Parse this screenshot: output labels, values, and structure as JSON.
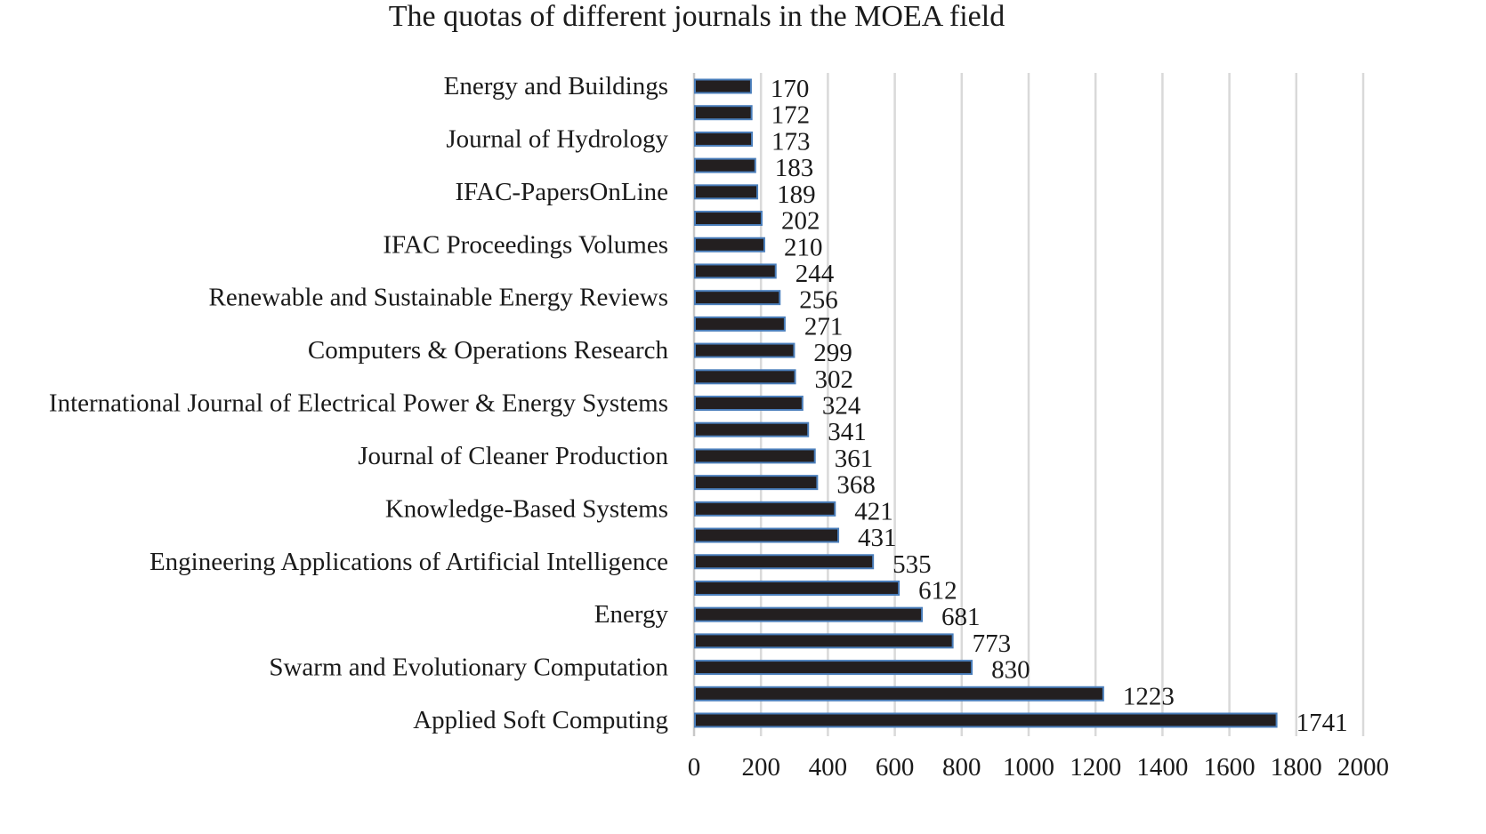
{
  "chart_data": {
    "type": "bar",
    "orientation": "horizontal",
    "title": "The quotas of different journals in the MOEA field",
    "xlabel": "",
    "ylabel": "",
    "xlim": [
      0,
      2000
    ],
    "xticks": [
      0,
      200,
      400,
      600,
      800,
      1000,
      1200,
      1400,
      1600,
      1800,
      2000
    ],
    "grid": "vertical",
    "legend": "none",
    "colors": {
      "bar_fill": "#231f20",
      "bar_border": "#4a7ebb",
      "grid": "#d9d9d9"
    },
    "categories": [
      "Energy and Buildings",
      "",
      "Journal of Hydrology",
      "",
      "IFAC-PapersOnLine",
      "",
      "IFAC Proceedings Volumes",
      "",
      "Renewable and Sustainable Energy Reviews",
      "",
      "Computers & Operations Research",
      "",
      "International Journal of Electrical Power & Energy Systems",
      "",
      "Journal of Cleaner Production",
      "",
      "Knowledge-Based Systems",
      "",
      "Engineering Applications of Artificial Intelligence",
      "",
      "Energy",
      "",
      "Swarm and Evolutionary Computation",
      "",
      "Applied Soft Computing"
    ],
    "values": [
      170,
      172,
      173,
      183,
      189,
      202,
      210,
      244,
      256,
      271,
      299,
      302,
      324,
      341,
      361,
      368,
      421,
      431,
      535,
      612,
      681,
      773,
      830,
      1223,
      1741
    ]
  }
}
